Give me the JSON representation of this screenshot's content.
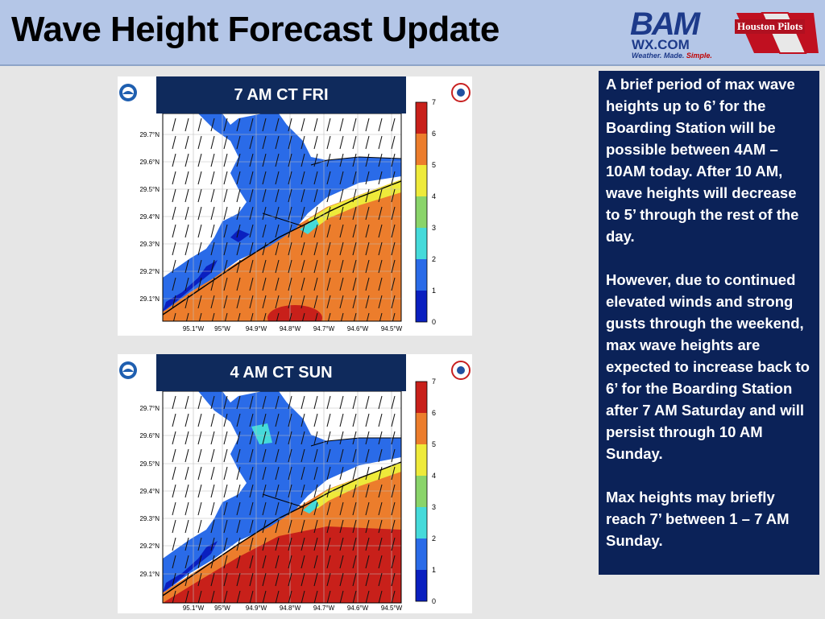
{
  "header": {
    "title": "Wave Height Forecast Update",
    "bam_logo_text": "BAM",
    "bam_logo_domain": "WX.COM",
    "bam_tagline_parts": [
      "Weather. ",
      "Made. ",
      "Simple."
    ],
    "partner_logo_text": "Houston Pilots"
  },
  "maps": [
    {
      "banner": "7 AM CT FRI",
      "lat_labels": [
        "29.7°N",
        "29.6°N",
        "29.5°N",
        "29.4°N",
        "29.3°N",
        "29.2°N",
        "29.1°N"
      ],
      "lon_labels": [
        "95.1°W",
        "95°W",
        "94.9°W",
        "94.8°W",
        "94.7°W",
        "94.6°W",
        "94.5°W"
      ],
      "colorbar_ticks": [
        "7",
        "6",
        "5",
        "4",
        "3",
        "2",
        "1",
        "0"
      ]
    },
    {
      "banner": "4 AM CT SUN",
      "lat_labels": [
        "29.7°N",
        "29.6°N",
        "29.5°N",
        "29.4°N",
        "29.3°N",
        "29.2°N",
        "29.1°N"
      ],
      "lon_labels": [
        "95.1°W",
        "95°W",
        "94.9°W",
        "94.8°W",
        "94.7°W",
        "94.6°W",
        "94.5°W"
      ],
      "colorbar_ticks": [
        "7",
        "6",
        "5",
        "4",
        "3",
        "2",
        "1",
        "0"
      ]
    }
  ],
  "colorbar_colors": [
    "#0a1fbf",
    "#2a6be8",
    "#45dada",
    "#8ad46a",
    "#eeea3a",
    "#ec7d2c",
    "#c8201a"
  ],
  "summary": {
    "paragraphs": [
      "A brief period of max wave heights up to 6’ for the Boarding Station will be possible between 4AM – 10AM today. After 10 AM, wave heights will decrease to 5’ through the rest of the day.",
      "However, due to continued elevated winds and strong gusts through the weekend, max wave heights are expected to increase back to 6’ for the Boarding Station after 7 AM Saturday and will persist through 10 AM Sunday.",
      "Max heights may briefly reach 7’ between 1 – 7 AM Sunday."
    ]
  }
}
